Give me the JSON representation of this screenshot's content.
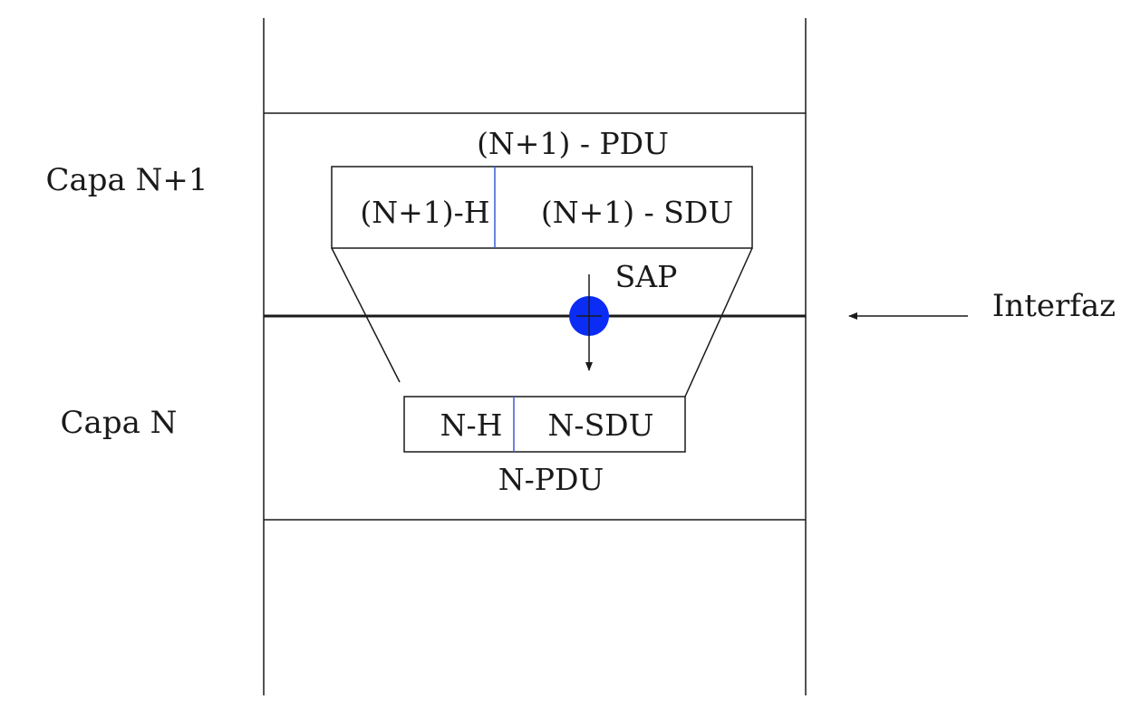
{
  "layers": {
    "upper": "Capa N+1",
    "lower": "Capa N"
  },
  "upper_pdu": {
    "title": "(N+1) - PDU",
    "header": "(N+1)-H",
    "sdu": "(N+1) - SDU"
  },
  "lower_pdu": {
    "title": "N-PDU",
    "header": "N-H",
    "sdu": "N-SDU"
  },
  "sap": "SAP",
  "interface": "Interfaz",
  "colors": {
    "line": "#1a1a1a",
    "header_divider": "#3a5bd9",
    "sap_dot": "#0a2cf5",
    "background": "#ffffff"
  }
}
